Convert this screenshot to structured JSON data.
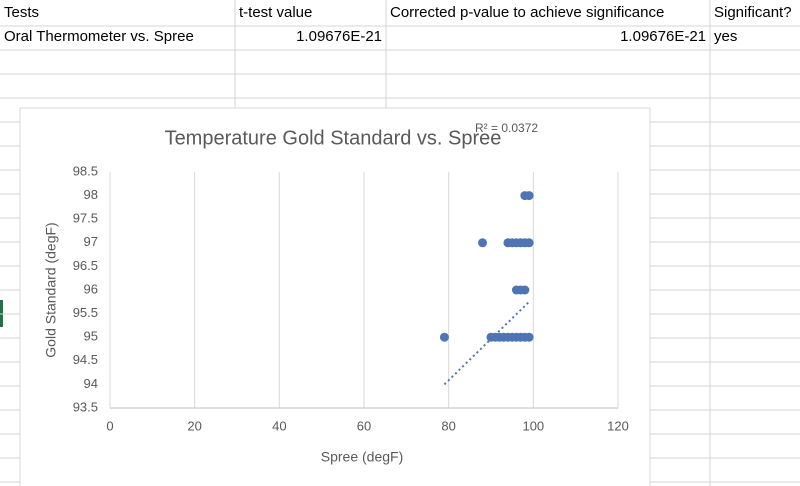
{
  "table": {
    "header": [
      "Tests",
      "t-test value",
      "Corrected p-value to achieve significance",
      "Significant?"
    ],
    "rows": [
      [
        "Oral Thermometer vs. Spree",
        "1.09676E-21",
        "1.09676E-21",
        "yes"
      ]
    ]
  },
  "chart_data": {
    "type": "scatter",
    "title": "Temperature Gold Standard vs. Spree",
    "x_label": "Spree (degF)",
    "y_label": "Gold Standard (degF)",
    "annotation": "R² = 0.0372",
    "series": [
      {
        "color": "#4f74b5",
        "x": [
          98,
          99,
          88,
          94,
          95,
          96,
          97,
          98,
          99,
          96,
          97,
          98,
          79,
          90,
          91,
          92,
          93,
          94,
          95,
          96,
          97,
          98,
          99
        ],
        "y": [
          98,
          98,
          97,
          97,
          97,
          97,
          97,
          97,
          97,
          96,
          96,
          96,
          95,
          95,
          95,
          95,
          95,
          95,
          95,
          95,
          95,
          95,
          95
        ]
      }
    ],
    "trendline": {
      "color": "#4f74b5",
      "x": [
        79,
        99
      ],
      "y": [
        94,
        95.75
      ]
    },
    "xlim": [
      0,
      120
    ],
    "xticks": [
      0,
      20,
      40,
      60,
      80,
      100,
      120
    ],
    "ylim": [
      93.5,
      98.5
    ],
    "yticks": [
      93.5,
      94,
      94.5,
      95,
      95.5,
      96,
      96.5,
      97,
      97.5,
      98,
      98.5
    ],
    "grid": "x"
  }
}
